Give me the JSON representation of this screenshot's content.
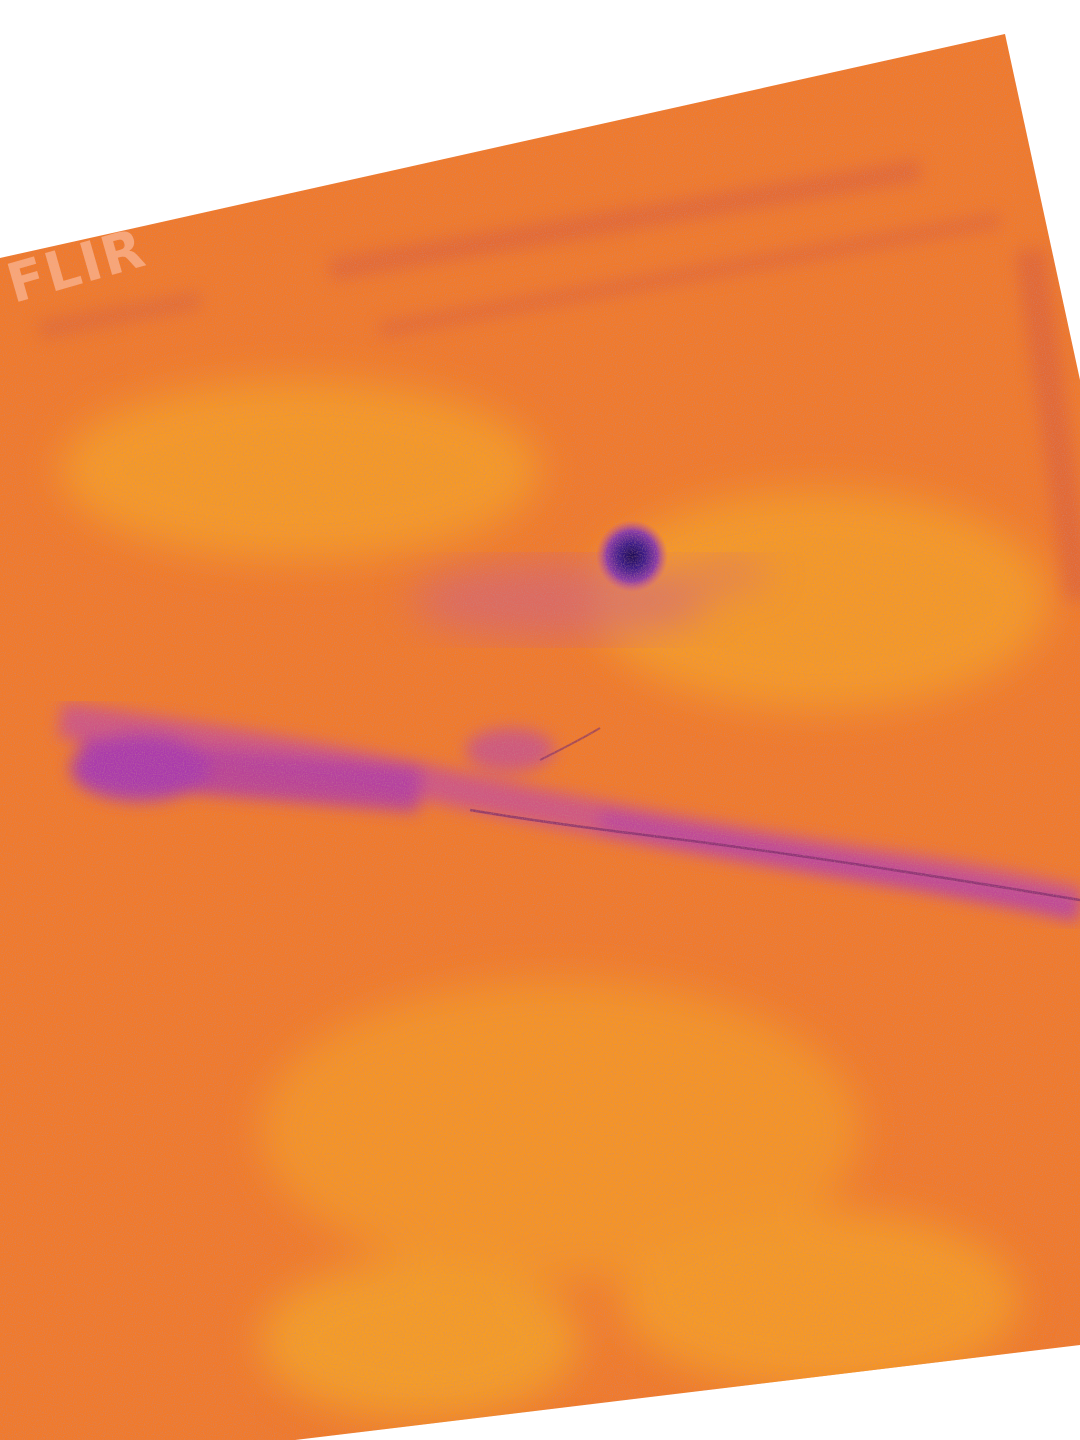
{
  "watermark": {
    "text": "FLIR"
  },
  "palette": {
    "base": "#f27a28",
    "warm": "#f9a020",
    "cool": "#c44aa0",
    "cold_spot": "#3a1a8a",
    "background": "#ffffff"
  }
}
